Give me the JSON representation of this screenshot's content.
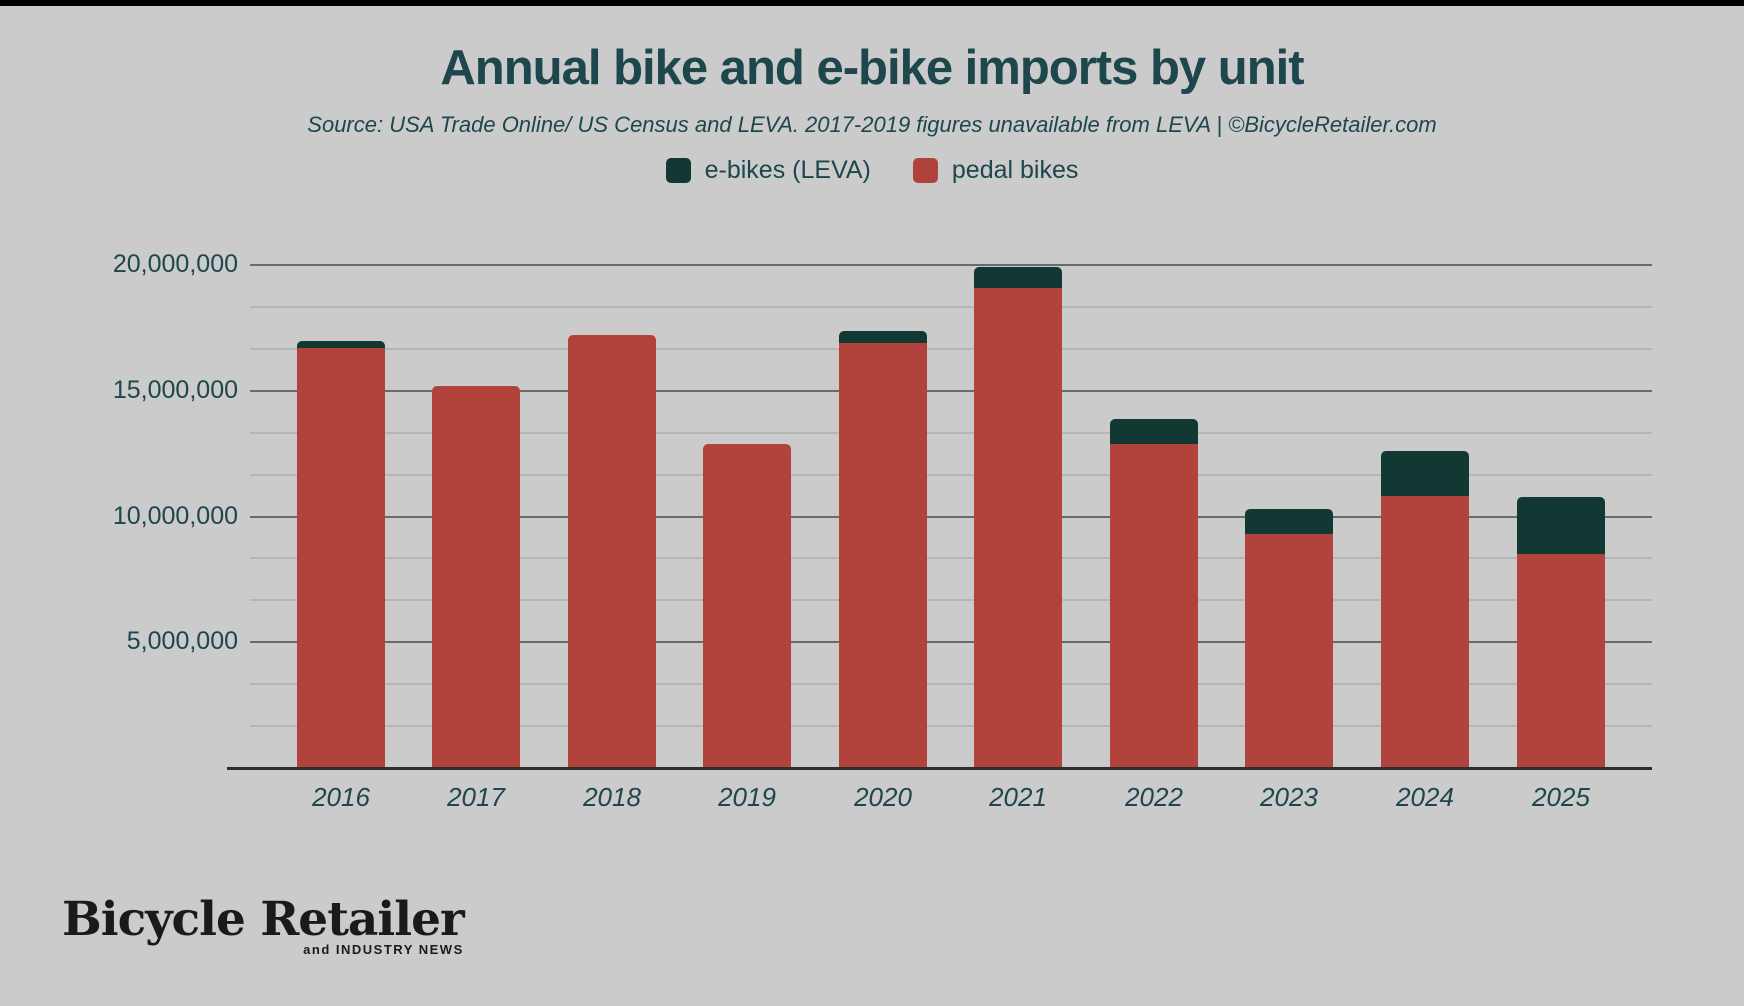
{
  "page": {
    "background_color": "#cbcbcb",
    "top_bar_color": "#000000",
    "text_color": "#1d464d"
  },
  "header": {
    "title": "Annual bike and e-bike imports by unit",
    "subtitle": "Source: USA Trade Online/ US Census and LEVA. 2017-2019 figures unavailable from LEVA | ©BicycleRetailer.com"
  },
  "legend": {
    "items": [
      {
        "label": "e-bikes (LEVA)",
        "color": "#123834"
      },
      {
        "label": "pedal bikes",
        "color": "#b2433c"
      }
    ]
  },
  "footer_logo": {
    "main": "Bicycle Retailer",
    "sub": "and INDUSTRY NEWS"
  },
  "chart_data": {
    "type": "bar",
    "stacked": true,
    "title": "Annual bike and e-bike imports by unit",
    "xlabel": "",
    "ylabel": "",
    "ylim": [
      0,
      20000000
    ],
    "grid": true,
    "legend_position": "top",
    "categories": [
      "2016",
      "2017",
      "2018",
      "2019",
      "2020",
      "2021",
      "2022",
      "2023",
      "2024",
      "2025"
    ],
    "series": [
      {
        "name": "pedal bikes",
        "color": "#b2433c",
        "values": [
          16700000,
          15200000,
          17200000,
          12900000,
          16900000,
          19100000,
          12900000,
          9300000,
          10800000,
          8500000
        ]
      },
      {
        "name": "e-bikes (LEVA)",
        "color": "#123834",
        "values": [
          260000,
          0,
          0,
          0,
          490000,
          850000,
          1000000,
          1000000,
          1780000,
          2280000
        ]
      }
    ],
    "y_ticks": [
      {
        "value": 20000000,
        "label": "20,000,000"
      },
      {
        "value": 15000000,
        "label": "15,000,000"
      },
      {
        "value": 10000000,
        "label": "10,000,000"
      },
      {
        "value": 5000000,
        "label": "5,000,000"
      },
      {
        "value": 0,
        "label": "-"
      }
    ],
    "minor_grid_step": 1666667
  }
}
